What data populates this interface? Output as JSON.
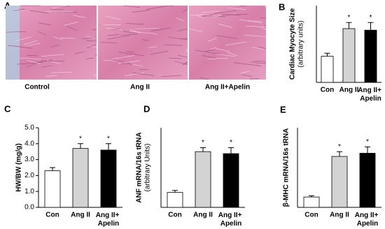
{
  "panel_a": {
    "label": "A",
    "captions": [
      "Control",
      "Ang II",
      "Ang II+Apelin"
    ]
  },
  "chart_data": [
    {
      "type": "bar",
      "label": "B",
      "ylabel": [
        "Cardiac Myocyte Size",
        "(arbitrary units)"
      ],
      "categories": [
        "Con",
        "Ang II",
        "Ang II+ Apelin"
      ],
      "values": [
        0.85,
        1.75,
        1.7
      ],
      "errors": [
        0.1,
        0.2,
        0.25
      ],
      "significance": [
        null,
        "*",
        "*"
      ],
      "colors": [
        "#ffffff",
        "#d3d3d3",
        "#000000"
      ],
      "ylim": [
        0,
        2.5
      ]
    },
    {
      "type": "bar",
      "label": "C",
      "ylabel": [
        "HW/BW (mg/g)"
      ],
      "categories": [
        "Con",
        "Ang II",
        "Ang II+ Apelin"
      ],
      "values": [
        2.3,
        3.7,
        3.6
      ],
      "errors": [
        0.2,
        0.3,
        0.4
      ],
      "significance": [
        null,
        "*",
        "*"
      ],
      "colors": [
        "#ffffff",
        "#d3d3d3",
        "#000000"
      ],
      "ylim": [
        0,
        5
      ],
      "yticks": [
        {
          "value": 0,
          "label": "0.0"
        },
        {
          "value": 1,
          "label": "1.0"
        },
        {
          "value": 2,
          "label": "2.0"
        },
        {
          "value": 3,
          "label": "3.0"
        },
        {
          "value": 4,
          "label": "4.0"
        },
        {
          "value": 5,
          "label": "5.0"
        }
      ]
    },
    {
      "type": "bar",
      "label": "D",
      "ylabel": [
        "ANF mRNA/16s tRNA",
        "(arbitrary Units)"
      ],
      "categories": [
        "Con",
        "Ang II",
        "Ang II+ Apelin"
      ],
      "values": [
        0.75,
        2.8,
        2.7
      ],
      "errors": [
        0.1,
        0.2,
        0.3
      ],
      "significance": [
        null,
        "*",
        "*"
      ],
      "colors": [
        "#ffffff",
        "#d3d3d3",
        "#000000"
      ],
      "ylim": [
        0,
        4
      ]
    },
    {
      "type": "bar",
      "label": "E",
      "ylabel": [
        "β-MHC mRNA/16s tRNA"
      ],
      "categories": [
        "Con",
        "Ang II",
        "Ang II+ Apelin"
      ],
      "values": [
        0.65,
        3.2,
        3.4
      ],
      "errors": [
        0.08,
        0.3,
        0.4
      ],
      "significance": [
        null,
        "*",
        "*"
      ],
      "colors": [
        "#ffffff",
        "#d3d3d3",
        "#000000"
      ],
      "ylim": [
        0,
        5
      ]
    }
  ]
}
